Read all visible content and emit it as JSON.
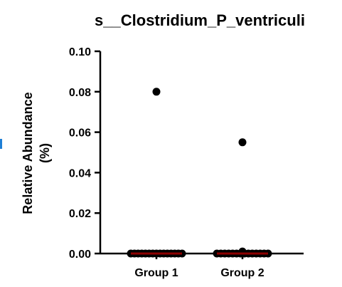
{
  "chart_data": {
    "type": "scatter",
    "title": "s__Clostridium_P_ventriculi",
    "xlabel": "",
    "ylabel": "Relative Abundance\n(%)",
    "ylim": [
      0,
      0.1
    ],
    "yticks": [
      "0.00",
      "0.02",
      "0.04",
      "0.06",
      "0.08",
      "0.10"
    ],
    "categories": [
      "Group 1",
      "Group 2"
    ],
    "series": [
      {
        "category": "Group 1",
        "values": [
          0.08,
          0.0,
          0.0,
          0.0,
          0.0,
          0.0,
          0.0,
          0.0,
          0.0,
          0.0,
          0.0,
          0.0,
          0.0,
          0.0,
          0.0,
          0.0
        ]
      },
      {
        "category": "Group 2",
        "values": [
          0.055,
          0.001,
          0.0,
          0.0,
          0.0,
          0.0,
          0.0,
          0.0,
          0.0,
          0.0,
          0.0,
          0.0,
          0.0,
          0.0,
          0.0,
          0.0
        ]
      }
    ],
    "grid": false,
    "point_color": "#000000",
    "median_color": "#8b0000"
  }
}
